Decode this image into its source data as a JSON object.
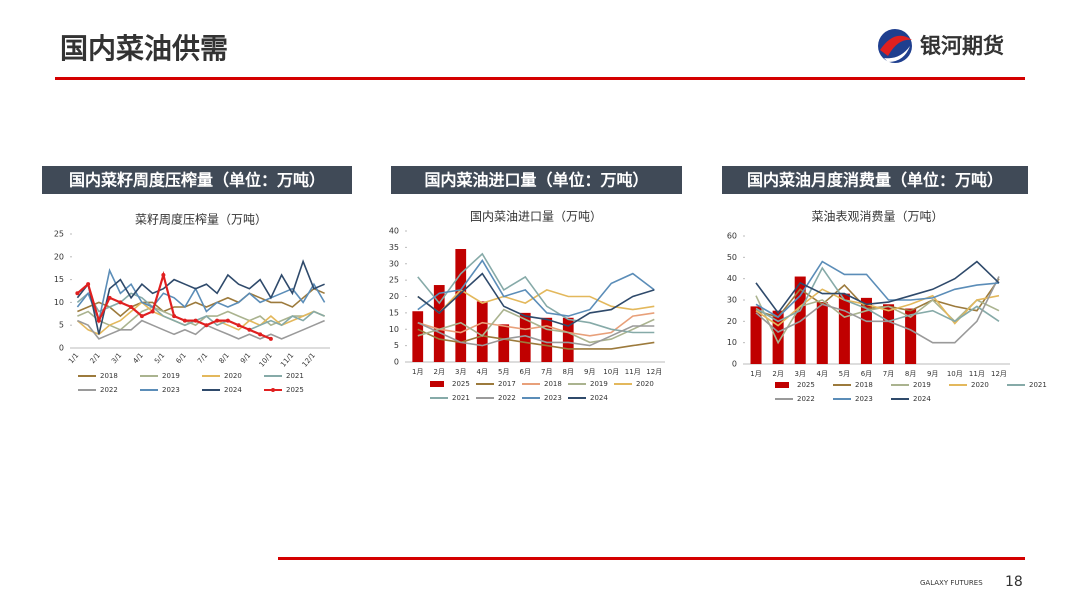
{
  "header": {
    "title": "国内菜油供需",
    "logo_text": "银河期货"
  },
  "footer": {
    "brand": "GALAXY FUTURES",
    "page": "18"
  },
  "chart_data": [
    {
      "type": "line",
      "panel_title": "国内菜籽周度压榨量（单位：万吨）",
      "title": "菜籽周度压榨量（万吨）",
      "categories": [
        "1/1",
        null,
        "2/1",
        null,
        "3/1",
        null,
        "4/1",
        null,
        "5/1",
        null,
        "6/1",
        null,
        "7/1",
        null,
        "8/1",
        null,
        "9/1",
        null,
        "10/1",
        null,
        "11/1",
        null,
        "12/1",
        null
      ],
      "ylim": [
        0,
        25
      ],
      "yticks": [
        0,
        5,
        10,
        15,
        20,
        25
      ],
      "series": [
        {
          "name": "2018",
          "type": "line",
          "color": "#9c7a3c",
          "values": [
            8,
            9,
            10,
            9,
            7,
            9,
            10,
            10,
            8,
            9,
            9,
            10,
            9,
            10,
            11,
            10,
            12,
            11,
            10,
            10,
            9,
            11,
            13,
            12
          ]
        },
        {
          "name": "2019",
          "type": "line",
          "color": "#aab38f",
          "values": [
            7,
            8,
            6,
            5,
            4,
            6,
            8,
            9,
            8,
            7,
            6,
            5,
            7,
            7,
            8,
            7,
            6,
            7,
            5,
            6,
            7,
            7,
            8,
            7
          ]
        },
        {
          "name": "2020",
          "type": "line",
          "color": "#e3b85c",
          "values": [
            6,
            4,
            3,
            5,
            6,
            8,
            10,
            8,
            7,
            6,
            5,
            6,
            5,
            6,
            5,
            4,
            6,
            5,
            7,
            5,
            6,
            7,
            8,
            7
          ]
        },
        {
          "name": "2021",
          "type": "line",
          "color": "#86aaa8",
          "values": [
            10,
            12,
            8,
            9,
            10,
            12,
            11,
            9,
            7,
            6,
            5,
            6,
            7,
            5,
            6,
            5,
            4,
            5,
            6,
            5,
            7,
            6,
            8,
            7
          ]
        },
        {
          "name": "2022",
          "type": "line",
          "color": "#9a9a9a",
          "values": [
            6,
            5,
            2,
            3,
            4,
            4,
            6,
            5,
            4,
            3,
            4,
            3,
            5,
            4,
            3,
            2,
            3,
            2,
            3,
            2,
            3,
            4,
            5,
            6
          ]
        },
        {
          "name": "2023",
          "type": "line",
          "color": "#5b8db8",
          "values": [
            9,
            12,
            6,
            17,
            12,
            14,
            10,
            9,
            12,
            11,
            9,
            13,
            8,
            10,
            9,
            10,
            12,
            10,
            11,
            12,
            13,
            10,
            14,
            10
          ]
        },
        {
          "name": "2024",
          "type": "line",
          "color": "#2f4a6b",
          "values": [
            11,
            14,
            3,
            13,
            15,
            11,
            14,
            12,
            13,
            15,
            14,
            13,
            14,
            12,
            16,
            14,
            13,
            15,
            11,
            16,
            12,
            19,
            13,
            14
          ]
        },
        {
          "name": "2025",
          "type": "line",
          "color": "#e02020",
          "marker": true,
          "values": [
            12,
            14,
            6,
            11,
            10,
            9,
            7,
            8,
            16,
            7,
            6,
            6,
            5,
            6,
            6,
            5,
            4,
            3,
            2,
            null,
            null,
            null,
            null,
            null
          ]
        }
      ]
    },
    {
      "type": "combo",
      "panel_title": "国内菜油进口量（单位：万吨）",
      "title": "国内菜油进口量（万吨）",
      "categories": [
        "1月",
        "2月",
        "3月",
        "4月",
        "5月",
        "6月",
        "7月",
        "8月",
        "9月",
        "10月",
        "11月",
        "12月"
      ],
      "ylim": [
        0,
        40
      ],
      "yticks": [
        0,
        5,
        10,
        15,
        20,
        25,
        30,
        35,
        40
      ],
      "series": [
        {
          "name": "2025",
          "type": "bar",
          "color": "#c00000",
          "values": [
            15.5,
            23.5,
            34.5,
            18.5,
            11.5,
            15,
            13.5,
            13.5,
            null,
            null,
            null,
            null
          ]
        },
        {
          "name": "2017",
          "type": "line",
          "color": "#9c7a3c",
          "values": [
            10,
            7,
            6,
            8,
            7,
            6,
            5,
            4,
            4,
            4,
            5,
            6
          ]
        },
        {
          "name": "2018",
          "type": "line",
          "color": "#e8a07a",
          "values": [
            12,
            10,
            9,
            12,
            11,
            10,
            11,
            9,
            8,
            9,
            14,
            15
          ]
        },
        {
          "name": "2019",
          "type": "line",
          "color": "#aab38f",
          "values": [
            8,
            10,
            12,
            8,
            16,
            13,
            10,
            9,
            6,
            7,
            10,
            13
          ]
        },
        {
          "name": "2020",
          "type": "line",
          "color": "#e3b85c",
          "values": [
            20,
            15,
            22,
            18,
            20,
            18,
            22,
            20,
            20,
            17,
            16,
            17
          ]
        },
        {
          "name": "2021",
          "type": "line",
          "color": "#86aaa8",
          "values": [
            26,
            18,
            27,
            33,
            22,
            26,
            17,
            13,
            12,
            10,
            9,
            9
          ]
        },
        {
          "name": "2022",
          "type": "line",
          "color": "#9a9a9a",
          "values": [
            12,
            9,
            6,
            5,
            7,
            8,
            6,
            6,
            5,
            8,
            11,
            11
          ]
        },
        {
          "name": "2023",
          "type": "line",
          "color": "#5b8db8",
          "values": [
            16,
            21,
            22,
            31,
            20,
            22,
            15,
            14,
            16,
            24,
            27,
            22
          ]
        },
        {
          "name": "2024",
          "type": "line",
          "color": "#2f4a6b",
          "values": [
            20,
            15,
            21,
            27,
            17,
            14,
            13,
            11,
            15,
            16,
            20,
            22
          ]
        }
      ]
    },
    {
      "type": "combo",
      "panel_title": "国内菜油月度消费量（单位：万吨）",
      "title": "菜油表观消费量（万吨）",
      "categories": [
        "1月",
        "2月",
        "3月",
        "4月",
        "5月",
        "6月",
        "7月",
        "8月",
        "9月",
        "10月",
        "11月",
        "12月"
      ],
      "ylim": [
        0,
        60
      ],
      "yticks": [
        0,
        10,
        20,
        30,
        40,
        50,
        60
      ],
      "series": [
        {
          "name": "2025",
          "type": "bar",
          "color": "#c00000",
          "values": [
            27,
            25,
            41,
            29,
            33,
            31,
            28,
            26,
            null,
            null,
            null,
            null
          ]
        },
        {
          "name": "2018",
          "type": "line",
          "color": "#9c7a3c",
          "values": [
            25,
            22,
            35,
            28,
            37,
            26,
            27,
            25,
            30,
            27,
            25,
            40
          ]
        },
        {
          "name": "2019",
          "type": "line",
          "color": "#aab38f",
          "values": [
            32,
            10,
            27,
            30,
            22,
            25,
            27,
            22,
            30,
            20,
            30,
            25
          ]
        },
        {
          "name": "2020",
          "type": "line",
          "color": "#e3b85c",
          "values": [
            25,
            18,
            27,
            35,
            30,
            28,
            25,
            28,
            32,
            19,
            30,
            32
          ]
        },
        {
          "name": "2021",
          "type": "line",
          "color": "#86aaa8",
          "values": [
            26,
            20,
            25,
            45,
            30,
            26,
            20,
            23,
            25,
            20,
            27,
            20
          ]
        },
        {
          "name": "2022",
          "type": "line",
          "color": "#9a9a9a",
          "values": [
            24,
            15,
            20,
            28,
            25,
            20,
            20,
            16,
            10,
            10,
            20,
            41
          ]
        },
        {
          "name": "2023",
          "type": "line",
          "color": "#5b8db8",
          "values": [
            28,
            22,
            32,
            48,
            42,
            42,
            30,
            30,
            31,
            35,
            37,
            38
          ]
        },
        {
          "name": "2024",
          "type": "line",
          "color": "#2f4a6b",
          "values": [
            38,
            24,
            38,
            33,
            33,
            28,
            29,
            32,
            35,
            40,
            48,
            38
          ]
        }
      ]
    }
  ]
}
